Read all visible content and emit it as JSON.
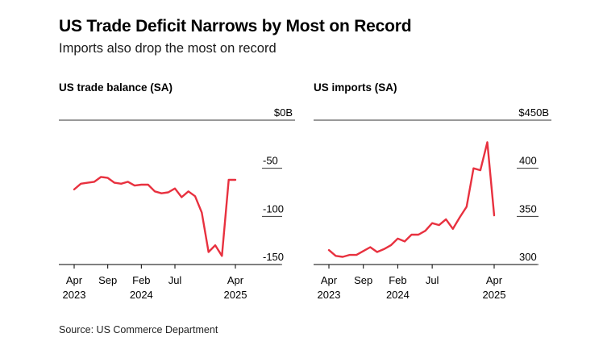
{
  "title": "US Trade Deficit Narrows by Most on Record",
  "subtitle": "Imports also drop the most on record",
  "source": "Source: US Commerce Department",
  "colors": {
    "line": "#e8313f",
    "axis": "#000000",
    "grid": "#333333"
  },
  "chart_data": [
    {
      "type": "line",
      "title": "US trade balance (SA)",
      "x_dates": [
        "2023-04",
        "2023-05",
        "2023-06",
        "2023-07",
        "2023-08",
        "2023-09",
        "2023-10",
        "2023-11",
        "2023-12",
        "2024-01",
        "2024-02",
        "2024-03",
        "2024-04",
        "2024-05",
        "2024-06",
        "2024-07",
        "2024-08",
        "2024-09",
        "2024-10",
        "2024-11",
        "2024-12",
        "2025-01",
        "2025-02",
        "2025-03",
        "2025-04"
      ],
      "xlim": [
        "2023-04",
        "2025-04"
      ],
      "ylim": [
        -150,
        0
      ],
      "yticks": [
        0,
        -50,
        -100,
        -150
      ],
      "ytick_labels": [
        "$0B",
        "-50",
        "-100",
        "-150"
      ],
      "xticks": [
        {
          "date": "2023-04",
          "label": "Apr",
          "year": "2023"
        },
        {
          "date": "2023-09",
          "label": "Sep",
          "year": ""
        },
        {
          "date": "2024-02",
          "label": "Feb",
          "year": "2024"
        },
        {
          "date": "2024-07",
          "label": "Jul",
          "year": ""
        },
        {
          "date": "2025-04",
          "label": "Apr",
          "year": "2025"
        }
      ],
      "series": [
        {
          "values": [
            -72,
            -66,
            -65,
            -64,
            -59,
            -60,
            -65,
            -66,
            -64,
            -68,
            -67,
            -67,
            -74,
            -76,
            -75,
            -71,
            -80,
            -74,
            -79,
            -96,
            -137,
            -130,
            -141,
            -62,
            -62
          ]
        }
      ]
    },
    {
      "type": "line",
      "title": "US imports (SA)",
      "x_dates": [
        "2023-04",
        "2023-05",
        "2023-06",
        "2023-07",
        "2023-08",
        "2023-09",
        "2023-10",
        "2023-11",
        "2023-12",
        "2024-01",
        "2024-02",
        "2024-03",
        "2024-04",
        "2024-05",
        "2024-06",
        "2024-07",
        "2024-08",
        "2024-09",
        "2024-10",
        "2024-11",
        "2024-12",
        "2025-01",
        "2025-02",
        "2025-03",
        "2025-04"
      ],
      "xlim": [
        "2023-04",
        "2025-04"
      ],
      "ylim": [
        300,
        450
      ],
      "yticks": [
        450,
        400,
        350,
        300
      ],
      "ytick_labels": [
        "$450B",
        "400",
        "350",
        "300"
      ],
      "xticks": [
        {
          "date": "2023-04",
          "label": "Apr",
          "year": "2023"
        },
        {
          "date": "2023-09",
          "label": "Sep",
          "year": ""
        },
        {
          "date": "2024-02",
          "label": "Feb",
          "year": "2024"
        },
        {
          "date": "2024-07",
          "label": "Jul",
          "year": ""
        },
        {
          "date": "2025-04",
          "label": "Apr",
          "year": "2025"
        }
      ],
      "series": [
        {
          "values": [
            315,
            309,
            308,
            310,
            310,
            314,
            318,
            313,
            316,
            320,
            327,
            324,
            331,
            331,
            335,
            343,
            341,
            347,
            337,
            349,
            360,
            400,
            398,
            427,
            351
          ]
        }
      ]
    }
  ]
}
